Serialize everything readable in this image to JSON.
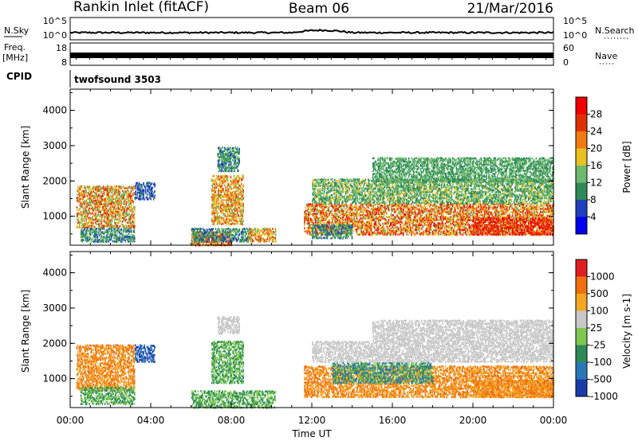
{
  "header": {
    "station": "Rankin Inlet (fitACF)",
    "beam": "Beam 06",
    "date": "21/Mar/2016"
  },
  "nsky_panel": {
    "left_label": "N.Sky",
    "right_label": "N.Search",
    "left_ticks": [
      "10^5",
      "10^0"
    ],
    "right_ticks": [
      "10^5",
      "10^0"
    ]
  },
  "freq_panel": {
    "left_label_line1": "Freq.",
    "left_label_line2": "[MHz]",
    "right_label": "Nave",
    "left_ticks": [
      "18",
      "8"
    ],
    "right_ticks": [
      "60",
      "0"
    ]
  },
  "cpid": {
    "label": "CPID",
    "value": "twofsound 3503"
  },
  "time_axis": {
    "label": "Time UT",
    "ticks": [
      "00:00",
      "04:00",
      "08:00",
      "12:00",
      "16:00",
      "20:00",
      "00:00"
    ]
  },
  "chart_data": [
    {
      "type": "heatmap",
      "name": "Power",
      "ylabel": "Slant Range [km]",
      "xlabel": "Time UT",
      "xlim_hours": [
        0,
        24
      ],
      "ylim_km": [
        180,
        4600
      ],
      "yticks": [
        "1000",
        "2000",
        "3000",
        "4000"
      ],
      "colorbar_label": "Power [dB]",
      "colorbar_range": [
        0,
        32
      ],
      "colorbar_ticks": [
        "4",
        "8",
        "12",
        "16",
        "20",
        "24",
        "28"
      ],
      "colorbar_colors": [
        "#0000f0",
        "#2040c0",
        "#2e8b57",
        "#6cb86c",
        "#e8c020",
        "#f07a10",
        "#e03000",
        "#f00000"
      ],
      "scatter_regions": [
        {
          "t": [
            0.3,
            3.2
          ],
          "r": [
            700,
            1900
          ],
          "val": [
            12,
            28
          ]
        },
        {
          "t": [
            0.5,
            3.2
          ],
          "r": [
            300,
            700
          ],
          "val": [
            6,
            14
          ]
        },
        {
          "t": [
            3.2,
            4.2
          ],
          "r": [
            1500,
            2000
          ],
          "val": [
            4,
            10
          ]
        },
        {
          "t": [
            6.0,
            8.0
          ],
          "r": [
            200,
            600
          ],
          "val": [
            18,
            30
          ]
        },
        {
          "t": [
            6.0,
            9.0
          ],
          "r": [
            300,
            700
          ],
          "val": [
            6,
            14
          ]
        },
        {
          "t": [
            7.0,
            8.6
          ],
          "r": [
            800,
            2200
          ],
          "val": [
            14,
            26
          ]
        },
        {
          "t": [
            7.3,
            8.4
          ],
          "r": [
            2300,
            3000
          ],
          "val": [
            6,
            14
          ]
        },
        {
          "t": [
            8.8,
            10.2
          ],
          "r": [
            300,
            700
          ],
          "val": [
            14,
            26
          ]
        },
        {
          "t": [
            11.6,
            24.0
          ],
          "r": [
            500,
            1400
          ],
          "val": [
            14,
            30
          ]
        },
        {
          "t": [
            12.0,
            24.0
          ],
          "r": [
            1400,
            2100
          ],
          "val": [
            8,
            18
          ]
        },
        {
          "t": [
            15.0,
            24.0
          ],
          "r": [
            2000,
            2700
          ],
          "val": [
            8,
            16
          ]
        },
        {
          "t": [
            12.0,
            14.0
          ],
          "r": [
            400,
            800
          ],
          "val": [
            6,
            14
          ]
        },
        {
          "t": [
            20.0,
            24.0
          ],
          "r": [
            500,
            1000
          ],
          "val": [
            22,
            32
          ]
        }
      ]
    },
    {
      "type": "heatmap",
      "name": "Velocity",
      "ylabel": "Slant Range [km]",
      "xlabel": "Time UT",
      "xlim_hours": [
        0,
        24
      ],
      "ylim_km": [
        180,
        4600
      ],
      "yticks": [
        "1000",
        "2000",
        "3000",
        "4000"
      ],
      "colorbar_label": "Velocity [m s-1]",
      "colorbar_ticks": [
        "1000",
        "500",
        "100",
        "25",
        "-25",
        "-100",
        "-500",
        "-1000"
      ],
      "colorbar_colors": [
        "#1a3ca8",
        "#2a78b8",
        "#2e8b57",
        "#7ec850",
        "#c8c8c8",
        "#f5a623",
        "#f07010",
        "#e02020"
      ],
      "scatter_regions": [
        {
          "t": [
            0.3,
            3.2
          ],
          "r": [
            700,
            2000
          ],
          "val": [
            5,
            6
          ]
        },
        {
          "t": [
            0.5,
            3.2
          ],
          "r": [
            300,
            800
          ],
          "val": [
            2,
            3
          ]
        },
        {
          "t": [
            3.2,
            4.2
          ],
          "r": [
            1500,
            2000
          ],
          "val": [
            0,
            1
          ]
        },
        {
          "t": [
            6.0,
            10.2
          ],
          "r": [
            200,
            700
          ],
          "val": [
            2,
            3
          ]
        },
        {
          "t": [
            7.0,
            8.6
          ],
          "r": [
            900,
            2100
          ],
          "val": [
            2,
            3
          ]
        },
        {
          "t": [
            7.3,
            8.4
          ],
          "r": [
            2300,
            2800
          ],
          "val": [
            4,
            4
          ]
        },
        {
          "t": [
            11.6,
            24.0
          ],
          "r": [
            500,
            1400
          ],
          "val": [
            5,
            6
          ]
        },
        {
          "t": [
            13.0,
            18.0
          ],
          "r": [
            900,
            1500
          ],
          "val": [
            1,
            3
          ]
        },
        {
          "t": [
            15.0,
            24.0
          ],
          "r": [
            1500,
            2700
          ],
          "val": [
            4,
            4
          ]
        },
        {
          "t": [
            12.0,
            15.0
          ],
          "r": [
            1500,
            2100
          ],
          "val": [
            4,
            4
          ]
        },
        {
          "t": [
            20.0,
            24.0
          ],
          "r": [
            500,
            1000
          ],
          "val": [
            5,
            6
          ]
        }
      ]
    }
  ]
}
